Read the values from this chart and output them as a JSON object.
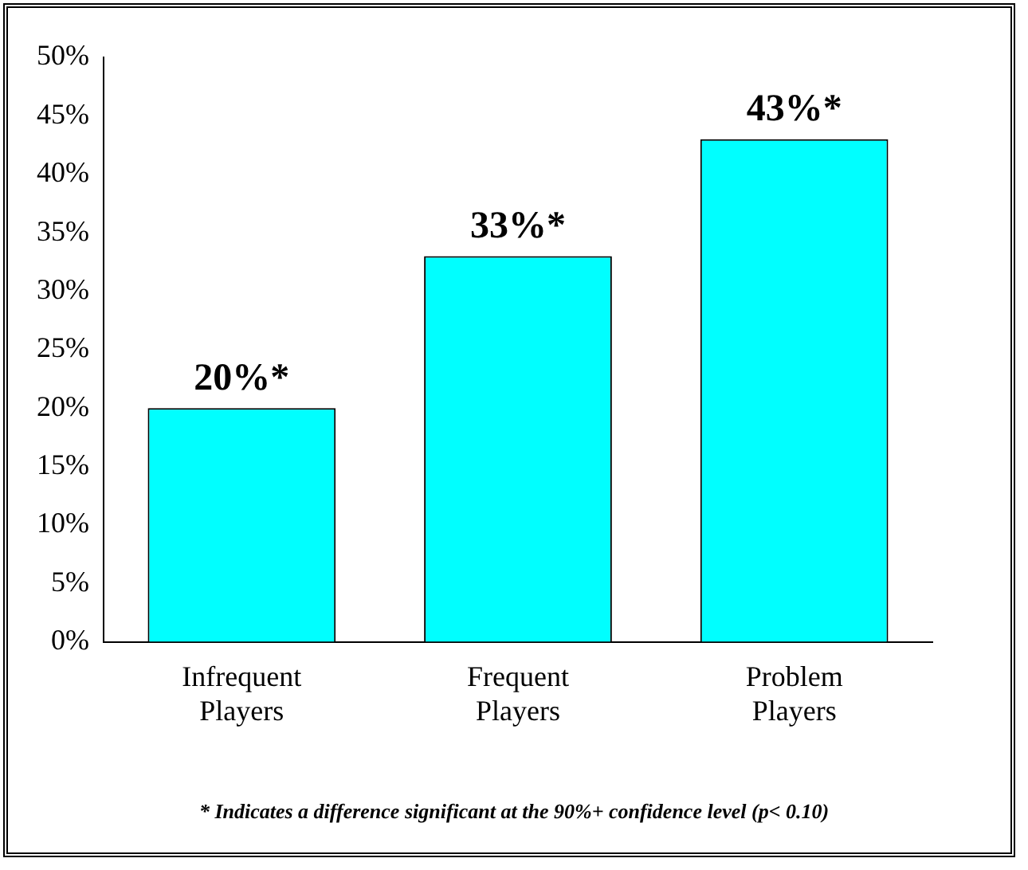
{
  "chart_data": {
    "type": "bar",
    "categories": [
      "Infrequent Players",
      "Frequent Players",
      "Problem Players"
    ],
    "values": [
      20,
      33,
      43
    ],
    "value_labels": [
      "20%*",
      "33%*",
      "43%*"
    ],
    "color": "#00ffff",
    "ylim": [
      0,
      50
    ],
    "yticks": [
      {
        "value": 0,
        "label": "0%"
      },
      {
        "value": 5,
        "label": "5%"
      },
      {
        "value": 10,
        "label": "10%"
      },
      {
        "value": 15,
        "label": "15%"
      },
      {
        "value": 20,
        "label": "20%"
      },
      {
        "value": 25,
        "label": "25%"
      },
      {
        "value": 30,
        "label": "30%"
      },
      {
        "value": 35,
        "label": "35%"
      },
      {
        "value": 40,
        "label": "40%"
      },
      {
        "value": 45,
        "label": "45%"
      },
      {
        "value": 50,
        "label": "50%"
      }
    ],
    "grid": false,
    "legend": false,
    "annotations": [
      "* Indicates a difference significant at the 90%+ confidence level (p< 0.10)"
    ]
  }
}
